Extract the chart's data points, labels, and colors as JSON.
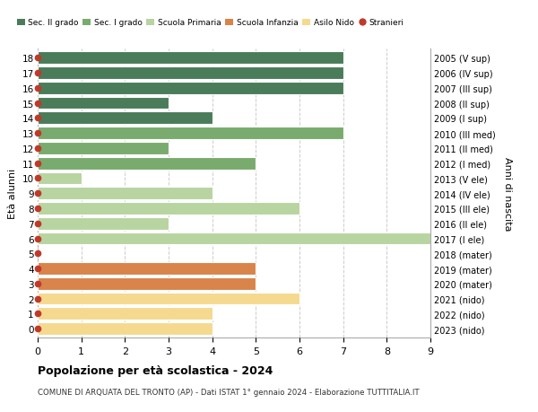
{
  "ages": [
    18,
    17,
    16,
    15,
    14,
    13,
    12,
    11,
    10,
    9,
    8,
    7,
    6,
    5,
    4,
    3,
    2,
    1,
    0
  ],
  "right_labels": [
    "2005 (V sup)",
    "2006 (IV sup)",
    "2007 (III sup)",
    "2008 (II sup)",
    "2009 (I sup)",
    "2010 (III med)",
    "2011 (II med)",
    "2012 (I med)",
    "2013 (V ele)",
    "2014 (IV ele)",
    "2015 (III ele)",
    "2016 (II ele)",
    "2017 (I ele)",
    "2018 (mater)",
    "2019 (mater)",
    "2020 (mater)",
    "2021 (nido)",
    "2022 (nido)",
    "2023 (nido)"
  ],
  "values": [
    7,
    7,
    7,
    3,
    4,
    7,
    3,
    5,
    1,
    4,
    6,
    3,
    9,
    0,
    5,
    5,
    6,
    4,
    4
  ],
  "bar_colors": [
    "#4a7c59",
    "#4a7c59",
    "#4a7c59",
    "#4a7c59",
    "#4a7c59",
    "#7aab6e",
    "#7aab6e",
    "#7aab6e",
    "#b8d4a0",
    "#b8d4a0",
    "#b8d4a0",
    "#b8d4a0",
    "#b8d4a0",
    "#d9844a",
    "#d9844a",
    "#d9844a",
    "#f5d98e",
    "#f5d98e",
    "#f5d98e"
  ],
  "stranieri_dots": [
    18,
    17,
    16,
    15,
    14,
    13,
    12,
    11,
    10,
    9,
    8,
    7,
    6,
    5,
    4,
    3,
    2,
    1,
    0
  ],
  "dot_color": "#c0392b",
  "legend_labels": [
    "Sec. II grado",
    "Sec. I grado",
    "Scuola Primaria",
    "Scuola Infanzia",
    "Asilo Nido",
    "Stranieri"
  ],
  "legend_colors": [
    "#4a7c59",
    "#7aab6e",
    "#b8d4a0",
    "#d9844a",
    "#f5d98e",
    "#c0392b"
  ],
  "legend_markers": [
    "o",
    "o",
    "o",
    "o",
    "o",
    "o"
  ],
  "ylabel_left": "Età alunni",
  "ylabel_right": "Anni di nascita",
  "title": "Popolazione per età scolastica - 2024",
  "subtitle": "COMUNE DI ARQUATA DEL TRONTO (AP) - Dati ISTAT 1° gennaio 2024 - Elaborazione TUTTITALIA.IT",
  "xlim": [
    0,
    9
  ],
  "xticks": [
    0,
    1,
    2,
    3,
    4,
    5,
    6,
    7,
    8,
    9
  ],
  "bg_color": "#ffffff",
  "grid_color": "#cccccc",
  "bar_height": 0.82
}
